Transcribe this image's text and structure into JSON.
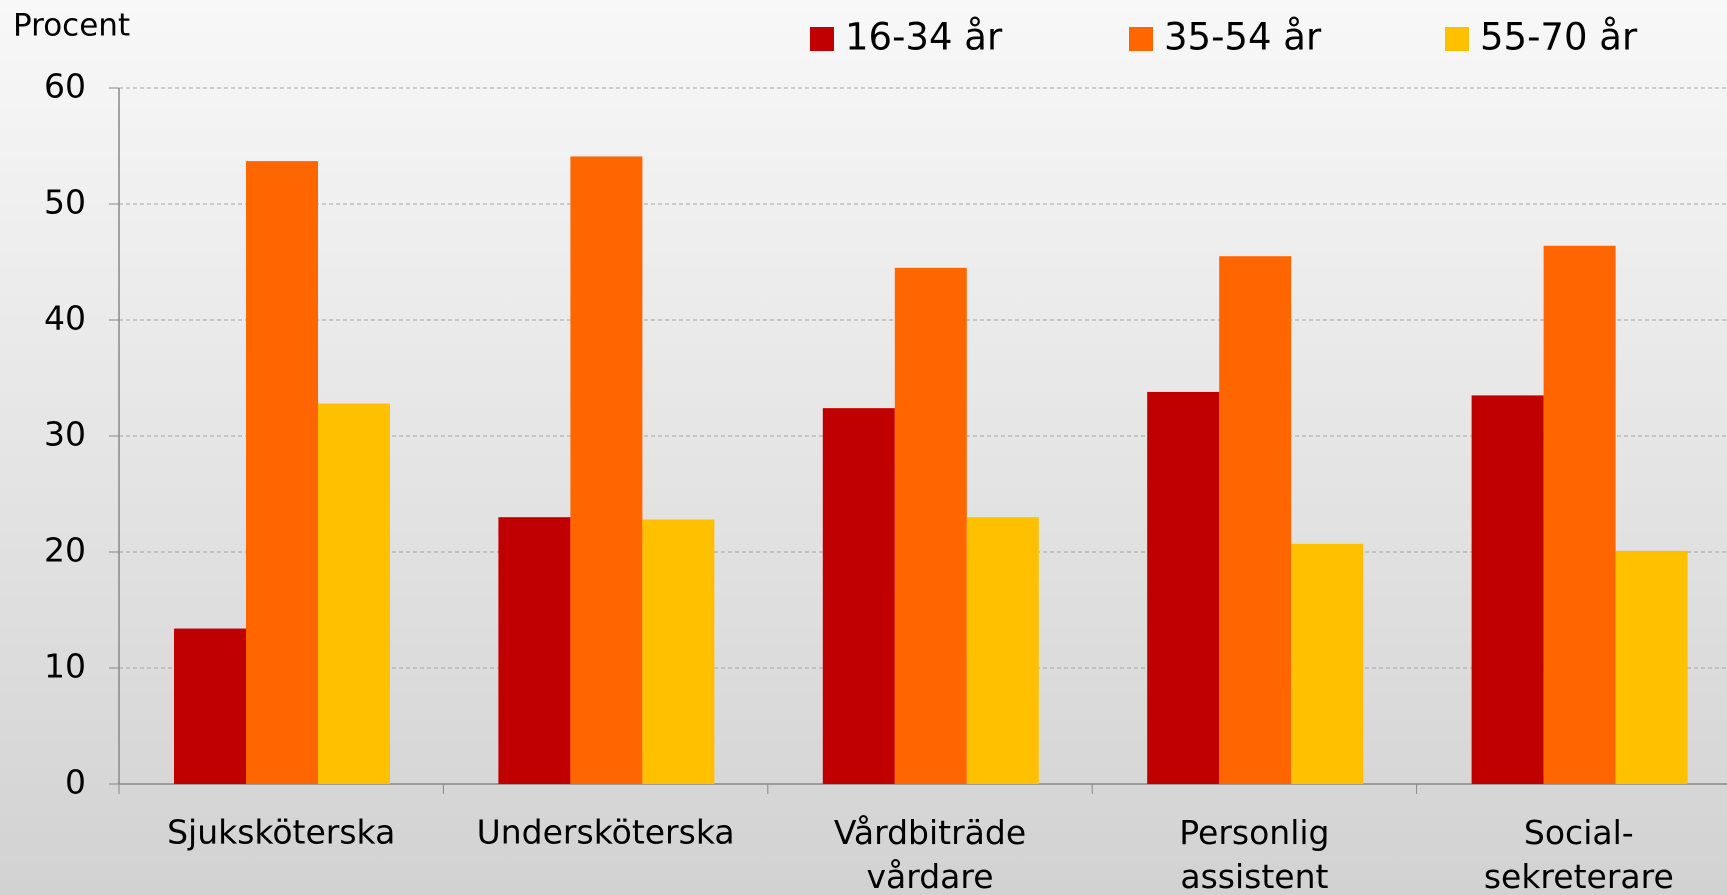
{
  "chart_data": {
    "type": "bar",
    "y_label": "Procent",
    "categories": [
      "Sjuksköterska",
      "Undersköterska",
      "Vårdbiträde vårdare",
      "Personlig assistent",
      "Social- sekreterare"
    ],
    "series": [
      {
        "name": "16-34 år",
        "color": "#c00000",
        "values": [
          13.4,
          23.0,
          32.4,
          33.8,
          33.5
        ]
      },
      {
        "name": "35-54 år",
        "color": "#ff6600",
        "values": [
          53.7,
          54.1,
          44.5,
          45.5,
          46.4
        ]
      },
      {
        "name": "55-70 år",
        "color": "#ffc000",
        "values": [
          32.8,
          22.8,
          23.0,
          20.7,
          20.1
        ]
      }
    ],
    "ylim": [
      0,
      60
    ],
    "yticks": [
      0,
      10,
      20,
      30,
      40,
      50,
      60
    ],
    "grid": true,
    "legend": "top"
  }
}
